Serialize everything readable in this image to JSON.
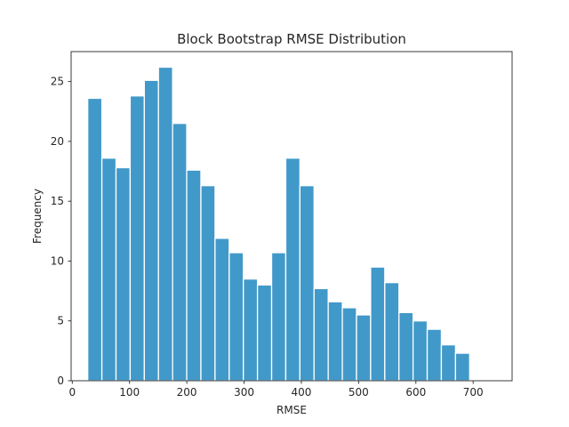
{
  "chart_data": {
    "type": "bar",
    "title": "Block Bootstrap RMSE Distribution",
    "xlabel": "RMSE",
    "ylabel": "Frequency",
    "xlim": [
      -2,
      768
    ],
    "ylim": [
      0,
      27.5
    ],
    "x_ticks": [
      0,
      100,
      200,
      300,
      400,
      500,
      600,
      700
    ],
    "y_ticks": [
      0,
      5,
      10,
      15,
      20,
      25
    ],
    "grid": false,
    "legend": "none",
    "bar_color": "#4199c9",
    "bin_start": 27,
    "bin_width": 24.7,
    "values": [
      23.6,
      18.6,
      17.8,
      23.8,
      25.1,
      26.2,
      21.5,
      17.6,
      16.3,
      11.9,
      10.7,
      8.5,
      8.0,
      10.7,
      18.6,
      16.3,
      7.7,
      6.6,
      6.1,
      5.5,
      9.5,
      8.2,
      5.7,
      5.0,
      4.3,
      3.0,
      2.3
    ]
  }
}
